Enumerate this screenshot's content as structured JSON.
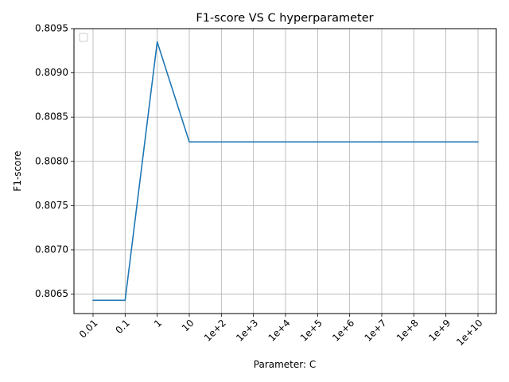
{
  "chart_data": {
    "type": "line",
    "title": "F1-score VS C hyperparameter",
    "xlabel": "Parameter: C",
    "ylabel": "F1-score",
    "categories": [
      "0.01",
      "0.1",
      "1",
      "10",
      "1e+2",
      "1e+3",
      "1e+4",
      "1e+5",
      "1e+6",
      "1e+7",
      "1e+8",
      "1e+9",
      "1e+10"
    ],
    "series": [
      {
        "color": "#1f77b4",
        "values": [
          0.80643,
          0.80643,
          0.80935,
          0.80822,
          0.80822,
          0.80822,
          0.80822,
          0.80822,
          0.80822,
          0.80822,
          0.80822,
          0.80822,
          0.80822
        ]
      }
    ],
    "ylim": [
      0.80628,
      0.8095
    ],
    "yticks": [
      "0.8065",
      "0.8070",
      "0.8075",
      "0.8080",
      "0.8085",
      "0.8090",
      "0.8095"
    ],
    "ytick_values": [
      0.8065,
      0.807,
      0.8075,
      0.808,
      0.8085,
      0.809,
      0.8095
    ],
    "grid": true,
    "legend": "top-left (empty)"
  }
}
